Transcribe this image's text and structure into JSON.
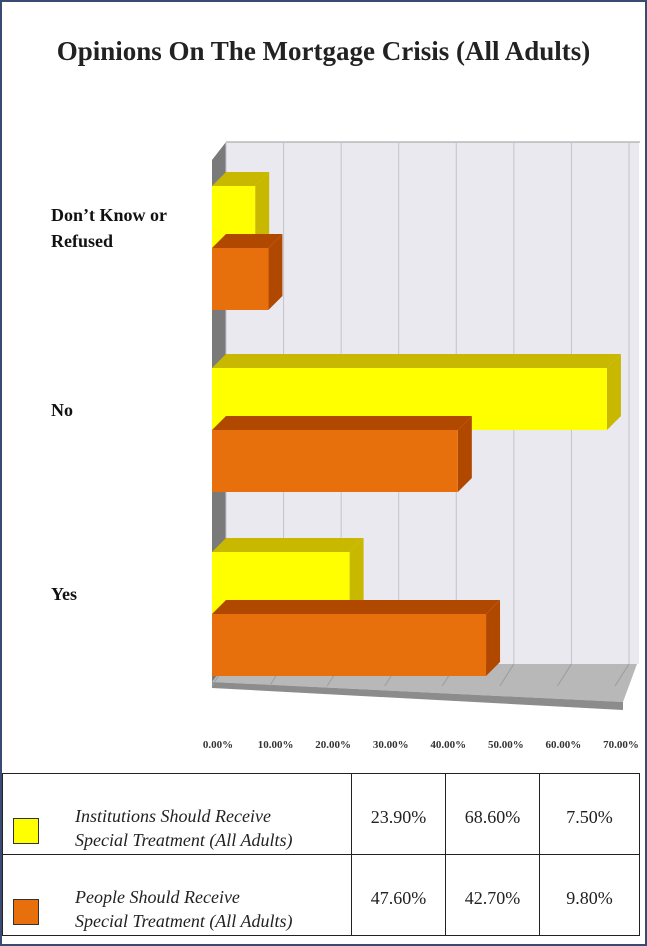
{
  "chart_data": {
    "type": "bar",
    "orientation": "horizontal",
    "title": "Opinions On The Mortgage Crisis (All Adults)",
    "categories": [
      "Don’t Know or Refused",
      "No",
      "Yes"
    ],
    "category_lines": [
      [
        "Don’t Know or",
        "Refused"
      ],
      [
        "No"
      ],
      [
        "Yes"
      ]
    ],
    "series": [
      {
        "name": "Institutions Should Receive Special Treatment (All Adults)",
        "name_lines": [
          "Institutions Should Receive",
          "Special Treatment (All Adults)"
        ],
        "color": "#ffff00",
        "side_color": "#c8b800",
        "values": [
          7.5,
          68.6,
          23.9
        ],
        "value_labels": [
          "23.90%",
          "68.60%",
          "7.50%"
        ]
      },
      {
        "name": "People Should Receive Special Treatment (All Adults)",
        "name_lines": [
          "People Should Receive",
          "Special Treatment (All Adults)"
        ],
        "color": "#e8700c",
        "side_color": "#b04800",
        "values": [
          9.8,
          42.7,
          47.6
        ],
        "value_labels": [
          "47.60%",
          "42.70%",
          "9.80%"
        ]
      }
    ],
    "xlim": [
      0,
      70
    ],
    "x_ticks": [
      "0.00%",
      "10.00%",
      "20.00%",
      "30.00%",
      "40.00%",
      "50.00%",
      "60.00%",
      "70.00%"
    ],
    "grid": true,
    "legend_placement": "bottom table"
  }
}
